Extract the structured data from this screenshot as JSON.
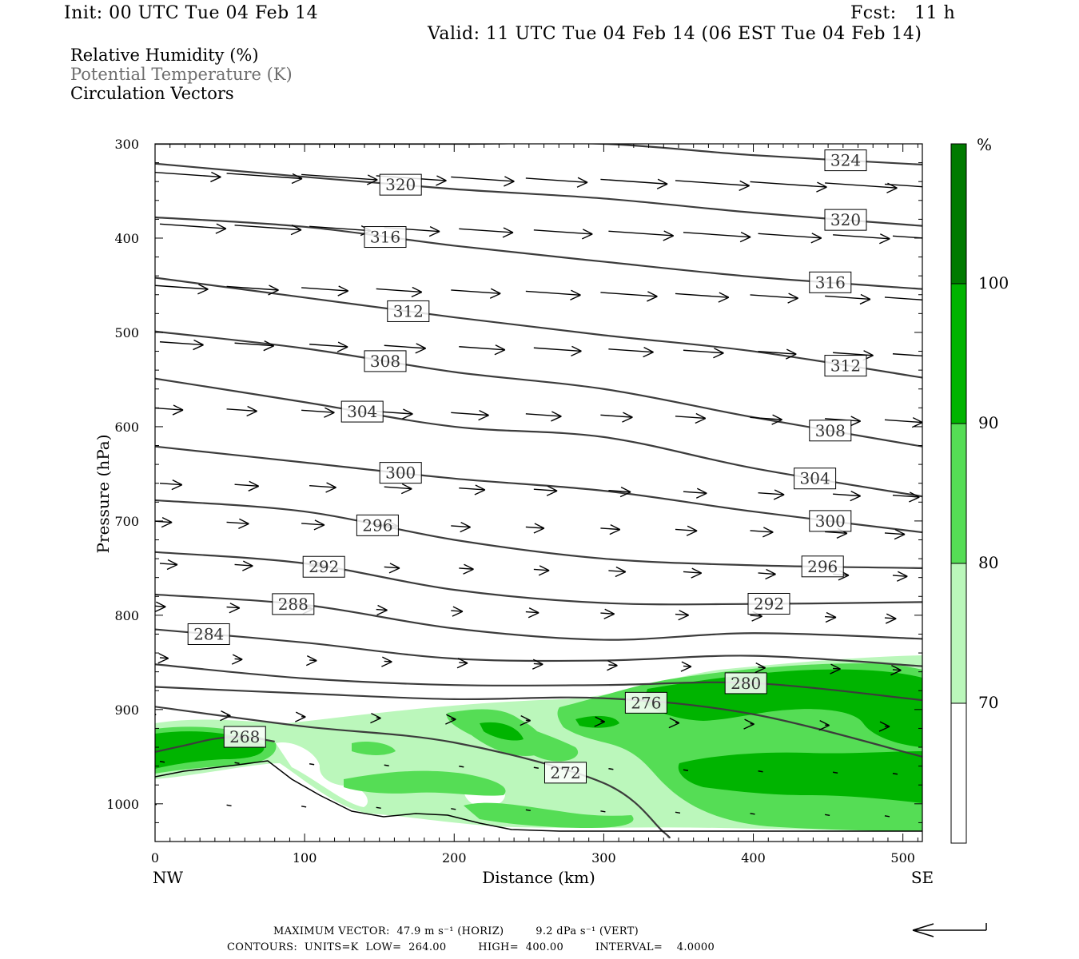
{
  "header": {
    "init": "Init: 00 UTC Tue 04 Feb 14",
    "fcst": "Fcst:   11 h",
    "valid": "Valid: 11 UTC Tue 04 Feb 14 (06 EST Tue 04 Feb 14)"
  },
  "fields": {
    "rh": "Relative Humidity (%)",
    "theta": "Potential Temperature (K)",
    "vectors": "Circulation Vectors"
  },
  "colors": {
    "rh_70_80": "#bbf7bb",
    "rh_80_90": "#55dd55",
    "rh_90_100": "#00b400",
    "rh_100": "#007a00",
    "contour": "#3c3c3c"
  },
  "chart_data": {
    "type": "line",
    "xlabel": "Distance (km)",
    "ylabel": "Pressure (hPa)",
    "xlim": [
      0,
      513
    ],
    "ylim": [
      1040,
      300
    ],
    "x_ticks": [
      0,
      100,
      200,
      300,
      400,
      500
    ],
    "y_ticks": [
      300,
      400,
      500,
      600,
      700,
      800,
      900,
      1000
    ],
    "x_end_labels": {
      "left": "NW",
      "right": "SE"
    },
    "isentropes": [
      {
        "label": "324",
        "x": [
          0,
          100,
          200,
          300,
          400,
          513
        ],
        "p": [
          300,
          300,
          300,
          300,
          312,
          322
        ]
      },
      {
        "label": "320",
        "x": [
          0,
          100,
          200,
          300,
          400,
          513
        ],
        "p": [
          321,
          335,
          348,
          358,
          373,
          387
        ]
      },
      {
        "label": "316",
        "x": [
          0,
          100,
          200,
          300,
          400,
          513
        ],
        "p": [
          378,
          388,
          408,
          425,
          441,
          454
        ]
      },
      {
        "label": "312",
        "x": [
          0,
          100,
          200,
          300,
          400,
          513
        ],
        "p": [
          442,
          463,
          484,
          503,
          520,
          548
        ]
      },
      {
        "label": "308",
        "x": [
          0,
          100,
          200,
          300,
          400,
          513
        ],
        "p": [
          499,
          517,
          542,
          560,
          590,
          621
        ]
      },
      {
        "label": "304",
        "x": [
          0,
          100,
          200,
          300,
          400,
          513
        ],
        "p": [
          549,
          574,
          600,
          611,
          644,
          674
        ]
      },
      {
        "label": "300",
        "x": [
          0,
          100,
          200,
          300,
          400,
          513
        ],
        "p": [
          621,
          638,
          655,
          668,
          690,
          712
        ]
      },
      {
        "label": "296",
        "x": [
          0,
          100,
          200,
          300,
          400,
          513
        ],
        "p": [
          678,
          690,
          720,
          740,
          747,
          750
        ]
      },
      {
        "label": "292",
        "x": [
          0,
          100,
          200,
          300,
          400,
          513
        ],
        "p": [
          733,
          745,
          773,
          787,
          788,
          786
        ]
      },
      {
        "label": "288",
        "x": [
          0,
          100,
          200,
          300,
          400,
          513
        ],
        "p": [
          778,
          789,
          814,
          826,
          819,
          825
        ]
      },
      {
        "label": "284",
        "x": [
          0,
          100,
          200,
          300,
          400,
          513
        ],
        "p": [
          815,
          829,
          846,
          848,
          843,
          854
        ]
      },
      {
        "label": "280",
        "x": [
          0,
          100,
          200,
          300,
          400,
          513
        ],
        "p": [
          852,
          867,
          874,
          874,
          872,
          890
        ]
      },
      {
        "label": "276",
        "x": [
          0,
          100,
          200,
          300,
          400,
          513
        ],
        "p": [
          876,
          883,
          889,
          888,
          905,
          950
        ]
      },
      {
        "label": "272",
        "x": [
          0,
          100,
          200,
          300,
          340,
          343
        ],
        "p": [
          897,
          918,
          935,
          978,
          1030,
          1035
        ]
      },
      {
        "label": "268",
        "x": [
          0,
          20,
          40,
          60,
          80
        ],
        "p": [
          945,
          938,
          931,
          929,
          934
        ]
      }
    ],
    "rh_legend": {
      "unit": "%",
      "levels": [
        70,
        80,
        90,
        100
      ]
    },
    "vector_reference": {
      "max_vector": "MAXIMUM VECTOR:  47.9 m s⁻¹ (HORIZ)         9.2 dPa s⁻¹ (VERT)",
      "contours": "CONTOURS:  UNITS=K  LOW=  264.00         HIGH=  400.00         INTERVAL=    4.0000"
    }
  }
}
